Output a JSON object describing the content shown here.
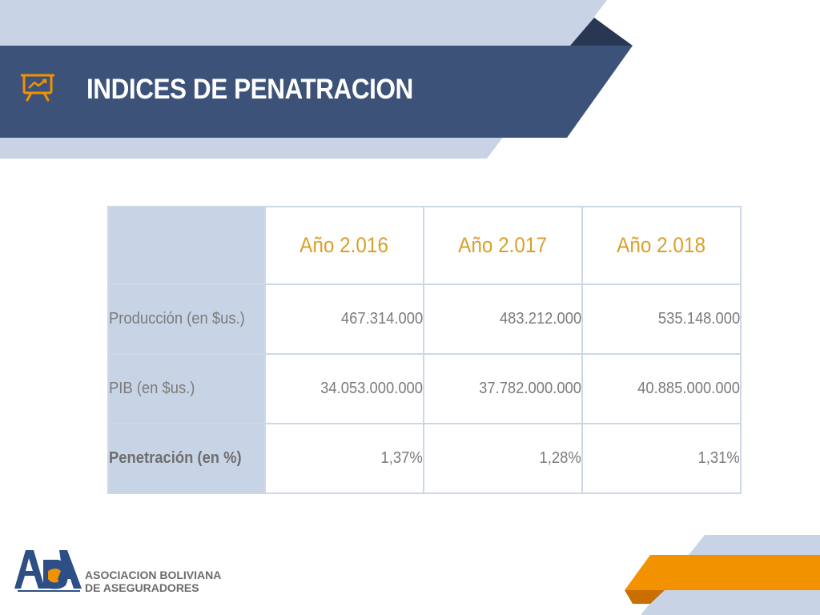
{
  "slide": {
    "title": "INDICES DE PENATRACION",
    "title_icon": "presentation-chart-icon",
    "colors": {
      "banner": "#3d5278",
      "banner_light": "#c8d4e6",
      "accent_gold": "#d9a029",
      "accent_orange": "#f39200",
      "label_fill": "#c7d4e6"
    }
  },
  "table": {
    "corner": "",
    "columns": [
      "Año 2.016",
      "Año 2.017",
      "Año 2.018"
    ],
    "rows": [
      {
        "label": "Producción (en $us.)",
        "values": [
          "467.314.000",
          "483.212.000",
          "535.148.000"
        ]
      },
      {
        "label": "PIB (en $us.)",
        "values": [
          "34.053.000.000",
          "37.782.000.000",
          "40.885.000.000"
        ]
      },
      {
        "label": "Penetración (en %)",
        "values": [
          "1,37%",
          "1,28%",
          "1,31%"
        ]
      }
    ]
  },
  "logo": {
    "mark_text": "ABA",
    "line1": "ASOCIACION BOLIVIANA",
    "line2": "DE ASEGURADORES"
  }
}
